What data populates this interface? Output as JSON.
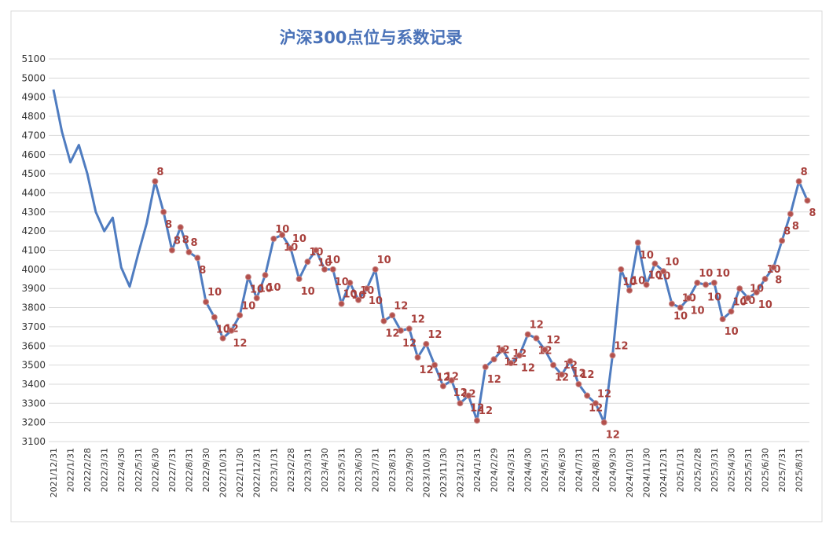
{
  "chart_data": {
    "type": "line",
    "title": "沪深300点位与系数记录",
    "categories": [
      "2021/12/31",
      null,
      "2022/1/31",
      null,
      "2022/2/28",
      null,
      "2022/3/31",
      null,
      "2022/4/30",
      null,
      "2022/5/31",
      null,
      "2022/6/30",
      null,
      "2022/7/31",
      null,
      "2022/8/31",
      null,
      "2022/9/30",
      null,
      "2022/10/31",
      null,
      "2022/11/30",
      null,
      "2022/12/31",
      null,
      "2023/1/31",
      null,
      "2023/2/28",
      null,
      "2023/3/31",
      null,
      "2023/4/30",
      null,
      "2023/5/31",
      null,
      "2023/6/30",
      null,
      "2023/7/31",
      null,
      "2023/8/31",
      null,
      "2023/9/30",
      null,
      "2023/10/31",
      null,
      "2023/11/30",
      null,
      "2023/12/31",
      null,
      "2024/1/31",
      null,
      "2024/2/29",
      null,
      "2024/3/31",
      null,
      "2024/4/30",
      null,
      "2024/5/31",
      null,
      "2024/6/30",
      null,
      "2024/7/31",
      null,
      "2024/8/31",
      null,
      "2024/9/30",
      null,
      "2024/10/31",
      null,
      "2024/11/30",
      null,
      "2024/12/31",
      null,
      "2025/1/31",
      null,
      "2025/2/28",
      null,
      "2025/3/31",
      null,
      "2025/4/30",
      null,
      "2025/5/31",
      null,
      "2025/6/30",
      null,
      "2025/7/31",
      null,
      "2025/8/31",
      null
    ],
    "series": [
      {
        "color": "#4f7cc0",
        "marker_color": "#b3504c",
        "values": [
          4940,
          4720,
          4560,
          4650,
          4500,
          4300,
          4200,
          4270,
          4010,
          3910,
          4080,
          4240,
          4460,
          4300,
          4100,
          4220,
          4090,
          4060,
          3830,
          3750,
          3640,
          3680,
          3760,
          3960,
          3850,
          3970,
          4160,
          4180,
          4110,
          3950,
          4040,
          4100,
          4000,
          4000,
          3820,
          3930,
          3840,
          3900,
          4000,
          3730,
          3760,
          3680,
          3690,
          3540,
          3610,
          3500,
          3390,
          3420,
          3300,
          3340,
          3210,
          3490,
          3530,
          3580,
          3510,
          3550,
          3660,
          3640,
          3580,
          3500,
          3450,
          3520,
          3400,
          3340,
          3300,
          3200,
          3550,
          4000,
          3890,
          4140,
          3920,
          4030,
          3990,
          3820,
          3800,
          3850,
          3930,
          3920,
          3930,
          3740,
          3780,
          3900,
          3850,
          3880,
          3950,
          4010,
          4150,
          4290,
          4460,
          4360
        ],
        "coefficients": [
          null,
          null,
          null,
          null,
          null,
          null,
          null,
          null,
          null,
          null,
          null,
          null,
          8,
          8,
          8,
          8,
          8,
          8,
          10,
          10,
          12,
          12,
          10,
          10,
          10,
          10,
          10,
          10,
          10,
          10,
          10,
          10,
          10,
          10,
          10,
          10,
          10,
          10,
          10,
          12,
          12,
          12,
          12,
          12,
          12,
          12,
          12,
          12,
          12,
          12,
          12,
          12,
          12,
          12,
          12,
          12,
          12,
          12,
          12,
          12,
          12,
          12,
          12,
          12,
          12,
          12,
          12,
          10,
          10,
          10,
          10,
          10,
          10,
          10,
          10,
          10,
          10,
          10,
          10,
          10,
          10,
          10,
          10,
          10,
          10,
          8,
          8,
          8,
          8,
          8
        ]
      }
    ],
    "ylim": [
      3100,
      5100
    ],
    "yticks": [
      3100,
      3200,
      3300,
      3400,
      3500,
      3600,
      3700,
      3800,
      3900,
      4000,
      4100,
      4200,
      4300,
      4400,
      4500,
      4600,
      4700,
      4800,
      4900,
      5000,
      5100
    ],
    "grid": true
  }
}
